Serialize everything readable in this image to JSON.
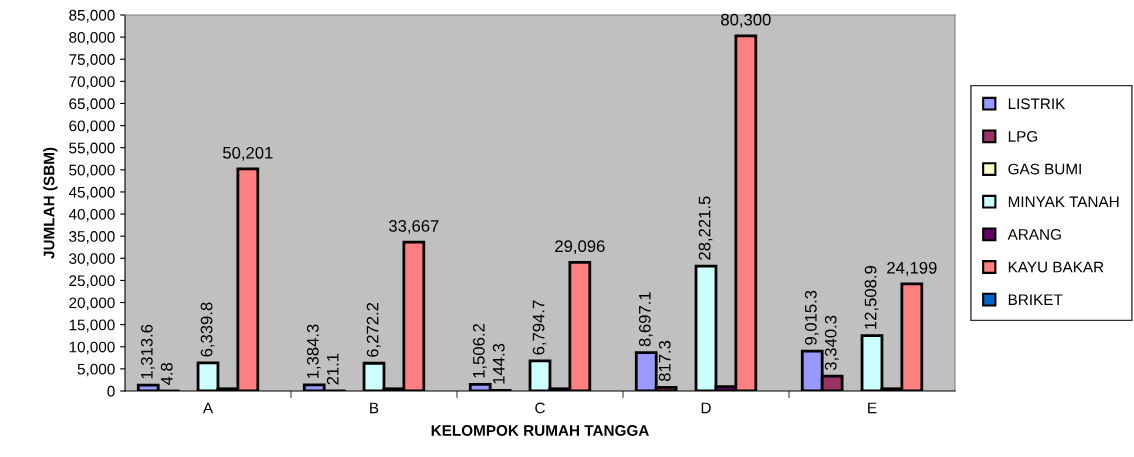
{
  "chart_data": {
    "type": "bar",
    "xlabel": "KELOMPOK RUMAH TANGGA",
    "ylabel": "JUMLAH (SBM)",
    "categories": [
      "A",
      "B",
      "C",
      "D",
      "E"
    ],
    "series": [
      {
        "name": "LISTRIK",
        "color": "#9999ff",
        "values": [
          1313.6,
          1384.3,
          1506.2,
          8697.1,
          9015.3
        ],
        "value_labels": [
          "1,313.6",
          "1,384.3",
          "1,506.2",
          "8,697.1",
          "9,015.3"
        ]
      },
      {
        "name": "LPG",
        "color": "#993366",
        "values": [
          4.8,
          21.1,
          144.3,
          817.3,
          3340.3
        ],
        "value_labels": [
          "4.8",
          "21.1",
          "144.3",
          "817.3",
          "3,340.3"
        ]
      },
      {
        "name": "GAS BUMI",
        "color": "#ffffcc",
        "values": [
          null,
          null,
          null,
          null,
          null
        ]
      },
      {
        "name": "MINYAK TANAH",
        "color": "#ccffff",
        "values": [
          6339.8,
          6272.2,
          6794.7,
          28221.5,
          12508.9
        ],
        "value_labels": [
          "6,339.8",
          "6,272.2",
          "6,794.7",
          "28,221.5",
          "12,508.9"
        ]
      },
      {
        "name": "ARANG",
        "color": "#660066",
        "values": [
          500,
          500,
          500,
          1000,
          500
        ]
      },
      {
        "name": "KAYU BAKAR",
        "color": "#ff8080",
        "values": [
          50201,
          33667,
          29096,
          80300,
          24199
        ],
        "value_labels": [
          "50,201",
          "33,667",
          "29,096",
          "80,300",
          "24,199"
        ]
      },
      {
        "name": "BRIKET",
        "color": "#0066cc",
        "values": [
          null,
          null,
          null,
          null,
          null
        ]
      }
    ],
    "ylim": [
      0,
      85000
    ],
    "yticks": [
      {
        "value": 0,
        "label": "0"
      },
      {
        "value": 5000,
        "label": "5,000"
      },
      {
        "value": 10000,
        "label": "10,000"
      },
      {
        "value": 15000,
        "label": "15,000"
      },
      {
        "value": 20000,
        "label": "20,000"
      },
      {
        "value": 25000,
        "label": "25,000"
      },
      {
        "value": 30000,
        "label": "30,000"
      },
      {
        "value": 35000,
        "label": "35,000"
      },
      {
        "value": 40000,
        "label": "40,000"
      },
      {
        "value": 45000,
        "label": "45,000"
      },
      {
        "value": 50000,
        "label": "50,000"
      },
      {
        "value": 55000,
        "label": "55,000"
      },
      {
        "value": 60000,
        "label": "60,000"
      },
      {
        "value": 65000,
        "label": "65,000"
      },
      {
        "value": 70000,
        "label": "70,000"
      },
      {
        "value": 75000,
        "label": "75,000"
      },
      {
        "value": 80000,
        "label": "80,000"
      },
      {
        "value": 85000,
        "label": "85,000"
      }
    ],
    "grid": false,
    "legend": "right"
  }
}
